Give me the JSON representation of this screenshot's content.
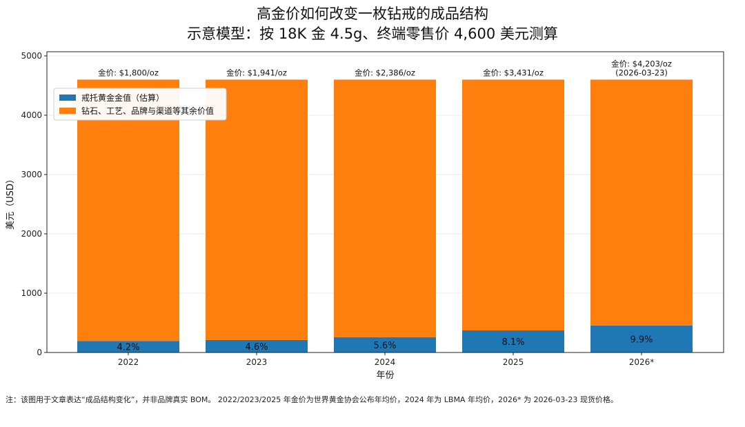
{
  "chart_data": {
    "type": "bar",
    "stacked": true,
    "title": "高金价如何改变一枚钻戒的成品结构",
    "subtitle": "示意模型：按 18K 金 4.5g、终端零售价 4,600 美元测算",
    "xlabel": "年份",
    "ylabel": "美元（USD）",
    "categories": [
      "2022",
      "2023",
      "2024",
      "2025",
      "2026*"
    ],
    "ylim": [
      0,
      5000
    ],
    "yticks": [
      0,
      1000,
      2000,
      3000,
      4000,
      5000
    ],
    "grid": "horizontal",
    "legend_position": "top-left",
    "series": [
      {
        "name": "戒托黄金金值（估算）",
        "color": "#1f77b4",
        "values": [
          195,
          211,
          259,
          372,
          456
        ],
        "labels": [
          "4.2%",
          "4.6%",
          "5.6%",
          "8.1%",
          "9.9%"
        ]
      },
      {
        "name": "钻石、工艺、品牌与渠道等其余价值",
        "color": "#ff7f0e",
        "values": [
          4405,
          4389,
          4341,
          4228,
          4144
        ]
      }
    ],
    "annotations": [
      [
        "金价: $1,800/oz"
      ],
      [
        "金价: $1,941/oz"
      ],
      [
        "金价: $2,386/oz"
      ],
      [
        "金价: $3,431/oz"
      ],
      [
        "金价: $4,203/oz",
        "(2026-03-23)"
      ]
    ]
  },
  "note": "注：该图用于文章表达“成品结构变化”，并非品牌真实 BOM。 2022/2023/2025 年金价为世界黄金协会公布年均价，2024 年为 LBMA 年均价，2026* 为 2026-03-23 现货价格。"
}
